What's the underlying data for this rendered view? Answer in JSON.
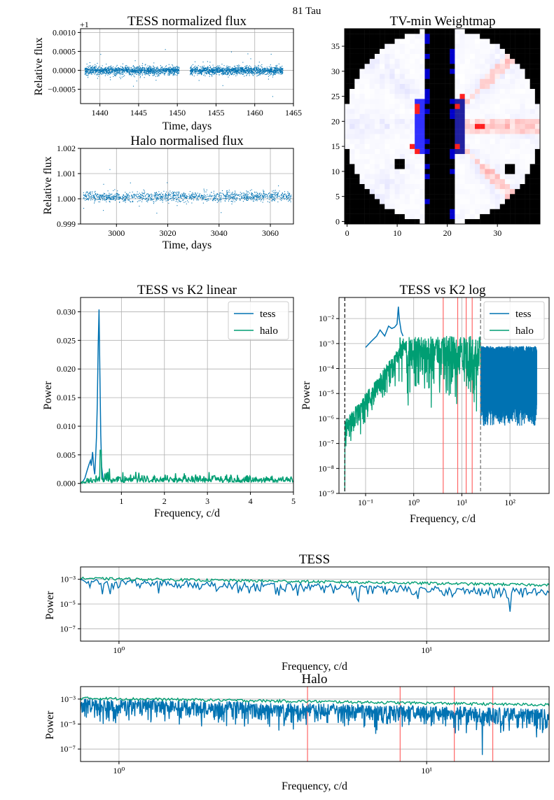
{
  "suptitle": "81 Tau",
  "colors": {
    "tess": "#0072b2",
    "halo": "#009e73",
    "marker": "#ff6666"
  },
  "chart_data": [
    {
      "id": "tess_flux",
      "type": "scatter",
      "title": "TESS normalized flux",
      "xlabel": "Time, days",
      "ylabel": "Relative flux",
      "offset_label": "+1",
      "xlim": [
        1437.5,
        1465
      ],
      "ylim": [
        -0.00088,
        0.0011
      ],
      "xticks": [
        1440,
        1445,
        1450,
        1455,
        1460,
        1465
      ],
      "yticks": [
        -0.0005,
        0.0,
        0.0005,
        0.001
      ],
      "ytick_labels": [
        "−0.0005",
        "0.0000",
        "0.0005",
        "0.0010"
      ],
      "segments": [
        [
          1438.0,
          1450.2
        ],
        [
          1451.6,
          1463.6
        ]
      ],
      "center": 0.0,
      "spread": 0.00012,
      "grid": true
    },
    {
      "id": "halo_flux",
      "type": "scatter",
      "title": "Halo normalised flux",
      "xlabel": "Time, days",
      "ylabel": "Relative flux",
      "xlim": [
        2986,
        3069
      ],
      "ylim": [
        0.999,
        1.002
      ],
      "xticks": [
        3000,
        3020,
        3040,
        3060
      ],
      "yticks": [
        0.999,
        1.0,
        1.001,
        1.002
      ],
      "ytick_labels": [
        "0.999",
        "1.000",
        "1.001",
        "1.002"
      ],
      "segments": [
        [
          2987,
          3068
        ]
      ],
      "center": 1.0001,
      "spread": 0.00022,
      "grid": true
    },
    {
      "id": "weightmap",
      "type": "heatmap",
      "title": "TV-min Weightmap",
      "xlim": [
        -0.5,
        38.5
      ],
      "ylim": [
        -0.5,
        38.5
      ],
      "xticks": [
        0,
        10,
        20,
        30
      ],
      "yticks": [
        0,
        5,
        10,
        15,
        20,
        25,
        30,
        35
      ],
      "circle_center": [
        19,
        19
      ],
      "circle_radius": 19.5,
      "black_columns": [
        16,
        21
      ],
      "red_hotspots": [
        [
          14,
          23
        ],
        [
          14,
          22
        ],
        [
          26,
          19
        ],
        [
          27,
          19
        ],
        [
          13,
          15
        ],
        [
          14,
          14
        ],
        [
          22,
          15
        ],
        [
          22,
          23
        ],
        [
          23,
          25
        ]
      ],
      "black_squares": [
        [
          10,
          11
        ],
        [
          32,
          10
        ]
      ],
      "grid": false
    },
    {
      "id": "psd_linear",
      "type": "line",
      "title": "TESS vs K2 linear",
      "xlabel": "Frequency, c/d",
      "ylabel": "Power",
      "xlim": [
        0.05,
        5
      ],
      "ylim": [
        -0.0015,
        0.0325
      ],
      "xticks": [
        1,
        2,
        3,
        4,
        5
      ],
      "yticks": [
        0.0,
        0.005,
        0.01,
        0.015,
        0.02,
        0.025,
        0.03
      ],
      "ytick_labels": [
        "0.000",
        "0.005",
        "0.010",
        "0.015",
        "0.020",
        "0.025",
        "0.030"
      ],
      "series": [
        {
          "name": "tess",
          "x": [
            0.05,
            0.1,
            0.15,
            0.2,
            0.25,
            0.28,
            0.3,
            0.33,
            0.36,
            0.38,
            0.4,
            0.42,
            0.44,
            0.46,
            0.48,
            0.5,
            0.52,
            0.54,
            0.57,
            0.6
          ],
          "y": [
            0.0001,
            0.0003,
            0.0009,
            0.0022,
            0.0034,
            0.004,
            0.0031,
            0.0055,
            0.0026,
            0.0016,
            0.0045,
            0.008,
            0.014,
            0.024,
            0.0304,
            0.019,
            0.0085,
            0.003,
            0.001,
            0.0004
          ]
        },
        {
          "name": "halo",
          "x_range": [
            0.05,
            5
          ],
          "base": 0.0009,
          "spike_x": 0.52,
          "spike_y": 0.0058
        }
      ],
      "legend": "top-right",
      "grid": true
    },
    {
      "id": "psd_log",
      "type": "line",
      "title": "TESS vs K2 log",
      "xlabel": "Frequency, c/d",
      "ylabel": "Power",
      "xscale": "log",
      "yscale": "log",
      "xlim": [
        0.028,
        650
      ],
      "ylim": [
        1e-09,
        0.07
      ],
      "xticks": [
        0.1,
        1,
        10,
        100
      ],
      "xtick_labels": [
        "10⁻¹",
        "10⁰",
        "10¹",
        "10²"
      ],
      "yticks": [
        1e-09,
        1e-08,
        1e-07,
        1e-06,
        1e-05,
        0.0001,
        0.001,
        0.01
      ],
      "ytick_labels": [
        "10⁻⁹",
        "10⁻⁸",
        "10⁻⁷",
        "10⁻⁶",
        "10⁻⁵",
        "10⁻⁴",
        "10⁻³",
        "10⁻²"
      ],
      "vlines_black": [
        0.037
      ],
      "vlines_gray": [
        24.5
      ],
      "vlines_red": [
        4.1,
        8.2,
        12.3,
        16.4
      ],
      "series": [
        {
          "name": "tess",
          "x": [
            0.1,
            0.13,
            0.17,
            0.2,
            0.25,
            0.3,
            0.35,
            0.4,
            0.45,
            0.48,
            0.5,
            0.55,
            0.6
          ],
          "y": [
            0.0007,
            0.0012,
            0.002,
            0.0035,
            0.002,
            0.005,
            0.004,
            0.0045,
            0.006,
            0.03,
            0.01,
            0.003,
            0.002
          ],
          "noise_range": [
            24.5,
            360
          ],
          "noise_top": 0.0008,
          "noise_bottom": 1e-06
        },
        {
          "name": "halo",
          "x_range": [
            0.037,
            24.5
          ]
        }
      ],
      "legend": "top-right",
      "grid": true
    },
    {
      "id": "tess_zoom",
      "type": "line",
      "title": "TESS",
      "xlabel": "Frequency, c/d",
      "ylabel": "Power",
      "xscale": "log",
      "yscale": "log",
      "xlim": [
        0.75,
        25
      ],
      "ylim": [
        1e-08,
        0.01
      ],
      "xticks": [
        1,
        10
      ],
      "xtick_labels": [
        "10⁰",
        "10¹"
      ],
      "yticks": [
        1e-07,
        1e-05,
        0.001
      ],
      "ytick_labels": [
        "10⁻⁷",
        "10⁻⁵",
        "10⁻³"
      ],
      "series": [
        {
          "name": "tess"
        },
        {
          "name": "halo"
        }
      ],
      "grid": true
    },
    {
      "id": "halo_zoom",
      "type": "line",
      "title": "Halo",
      "xlabel": "Frequency, c/d",
      "ylabel": "Power",
      "xscale": "log",
      "yscale": "log",
      "xlim": [
        0.75,
        25
      ],
      "ylim": [
        1e-08,
        0.01
      ],
      "xticks": [
        1,
        10
      ],
      "xtick_labels": [
        "10⁰",
        "10¹"
      ],
      "yticks": [
        1e-07,
        1e-05,
        0.001
      ],
      "ytick_labels": [
        "10⁻⁷",
        "10⁻⁵",
        "10⁻³"
      ],
      "vlines_red": [
        4.1,
        8.2,
        12.3,
        16.4
      ],
      "series": [
        {
          "name": "tess"
        },
        {
          "name": "halo"
        }
      ],
      "grid": true
    }
  ]
}
